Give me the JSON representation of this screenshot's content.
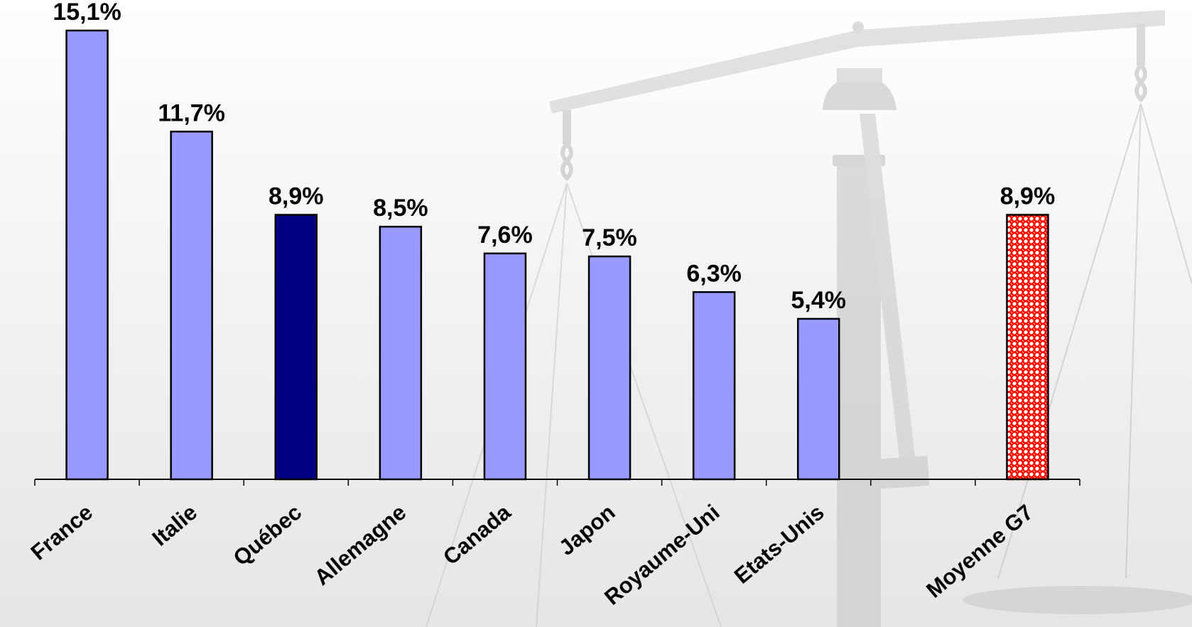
{
  "chart_data": {
    "type": "bar",
    "categories": [
      "France",
      "Italie",
      "Québec",
      "Allemagne",
      "Canada",
      "Japon",
      "Royaume-Uni",
      "Etats-Unis",
      "",
      "Moyenne G7"
    ],
    "values": [
      15.1,
      11.7,
      8.9,
      8.5,
      7.6,
      7.5,
      6.3,
      5.4,
      null,
      8.9
    ],
    "value_labels": [
      "15,1%",
      "11,7%",
      "8,9%",
      "8,5%",
      "7,6%",
      "7,5%",
      "6,3%",
      "5,4%",
      "",
      "8,9%"
    ],
    "bar_styles": [
      "default",
      "default",
      "highlight",
      "default",
      "default",
      "default",
      "default",
      "default",
      "none",
      "pattern"
    ],
    "colors": {
      "default": "#9999ff",
      "highlight": "#000080",
      "pattern_base": "#ff0000",
      "pattern_dot": "#ffffff",
      "outline": "#000000"
    },
    "title": "",
    "xlabel": "",
    "ylabel": "",
    "ylim": [
      0,
      15.1
    ],
    "grid": false,
    "legend": "none"
  },
  "background": {
    "icon": "scale-of-justice-icon",
    "tone": "#c8c8c8"
  }
}
